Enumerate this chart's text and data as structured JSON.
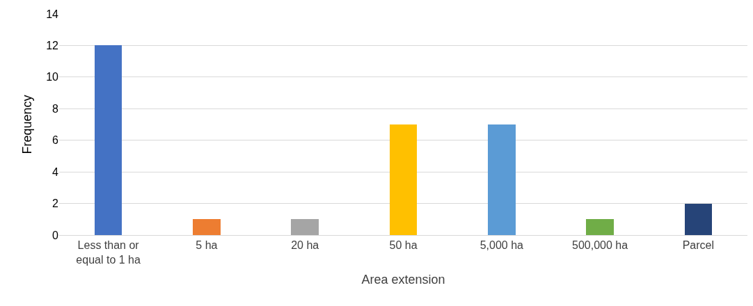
{
  "chart_data": {
    "type": "bar",
    "xlabel": "Area extension",
    "ylabel": "Frequency",
    "categories": [
      "Less than or\nequal to 1 ha",
      "5 ha",
      "20 ha",
      "50 ha",
      "5,000 ha",
      "500,000 ha",
      "Parcel"
    ],
    "values": [
      12,
      1,
      1,
      7,
      7,
      1,
      2
    ],
    "colors": [
      "#4472c4",
      "#ed7d31",
      "#a5a5a5",
      "#ffc000",
      "#5b9bd5",
      "#70ad47",
      "#264478"
    ],
    "ylim": [
      0,
      14
    ],
    "yticks": [
      0,
      2,
      4,
      6,
      8,
      10,
      12,
      14
    ],
    "grid": "y",
    "legend": false
  }
}
